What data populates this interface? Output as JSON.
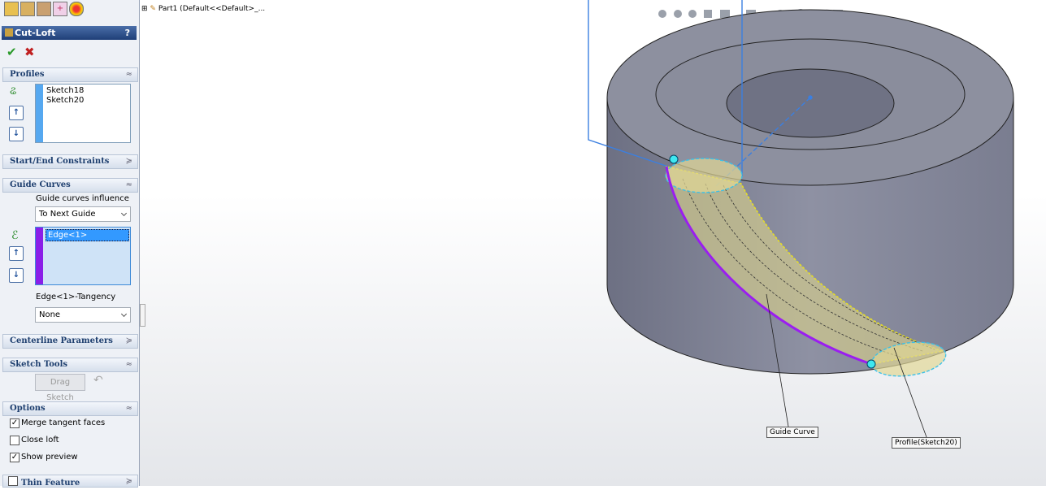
{
  "tree": {
    "label": "Part1  (Default<<Default>_..."
  },
  "panel": {
    "title": "Cut-Loft",
    "help": "?",
    "profiles": {
      "header": "Profiles",
      "items": [
        "Sketch18",
        "Sketch20"
      ]
    },
    "start_end": {
      "header": "Start/End Constraints"
    },
    "guide_curves": {
      "header": "Guide Curves",
      "influence_label": "Guide curves influence",
      "influence": "To Next Guide",
      "items": [
        "Edge<1>"
      ],
      "tangency_label": "Edge<1>-Tangency",
      "tangency": "None"
    },
    "centerline": {
      "header": "Centerline Parameters"
    },
    "sketch_tools": {
      "header": "Sketch Tools",
      "button": "Drag Sketch"
    },
    "options": {
      "header": "Options",
      "checkboxes": [
        {
          "label": "Merge tangent faces",
          "checked": true
        },
        {
          "label": "Close loft",
          "checked": false
        },
        {
          "label": "Show preview",
          "checked": true
        }
      ]
    },
    "thin_feature": {
      "header": "Thin Feature",
      "checked": false
    }
  },
  "callouts": [
    "Guide Curve",
    "Profile(Sketch20)"
  ]
}
